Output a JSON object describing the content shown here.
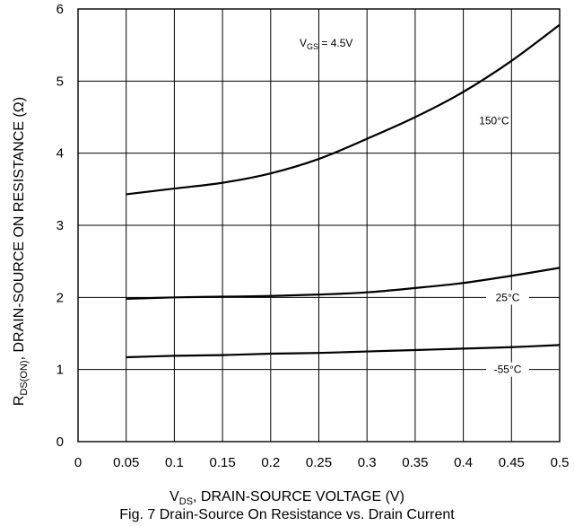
{
  "chart_data": {
    "type": "line",
    "title": "",
    "x": [
      0.05,
      0.1,
      0.15,
      0.2,
      0.25,
      0.3,
      0.35,
      0.4,
      0.45,
      0.5
    ],
    "xlim": [
      0,
      0.5
    ],
    "ylim": [
      0,
      6
    ],
    "xticks": [
      "0",
      "0.05",
      "0.1",
      "0.15",
      "0.2",
      "0.25",
      "0.3",
      "0.35",
      "0.4",
      "0.45",
      "0.5"
    ],
    "yticks": [
      "0",
      "1",
      "2",
      "3",
      "4",
      "5",
      "6"
    ],
    "grid": true,
    "xlabel": {
      "main": "V",
      "sub": "DS",
      "rest": ", DRAIN-SOURCE VOLTAGE (V)"
    },
    "ylabel": {
      "main": "R",
      "sub": "DS(ON)",
      "rest": ", DRAIN-SOURCE ON RESISTANCE (Ω)"
    },
    "condition": {
      "main": "V",
      "sub": "GS",
      "rest": " = 4.5V"
    },
    "series": [
      {
        "name": "150°C",
        "values": [
          3.43,
          3.51,
          3.59,
          3.72,
          3.92,
          4.2,
          4.5,
          4.85,
          5.28,
          5.78
        ]
      },
      {
        "name": "25°C",
        "values": [
          1.98,
          2.0,
          2.01,
          2.02,
          2.04,
          2.07,
          2.13,
          2.2,
          2.3,
          2.41
        ]
      },
      {
        "name": "-55°C",
        "values": [
          1.17,
          1.19,
          1.2,
          1.22,
          1.23,
          1.25,
          1.27,
          1.29,
          1.31,
          1.34
        ]
      }
    ]
  },
  "caption": "Fig. 7  Drain-Source On Resistance vs. Drain Current"
}
